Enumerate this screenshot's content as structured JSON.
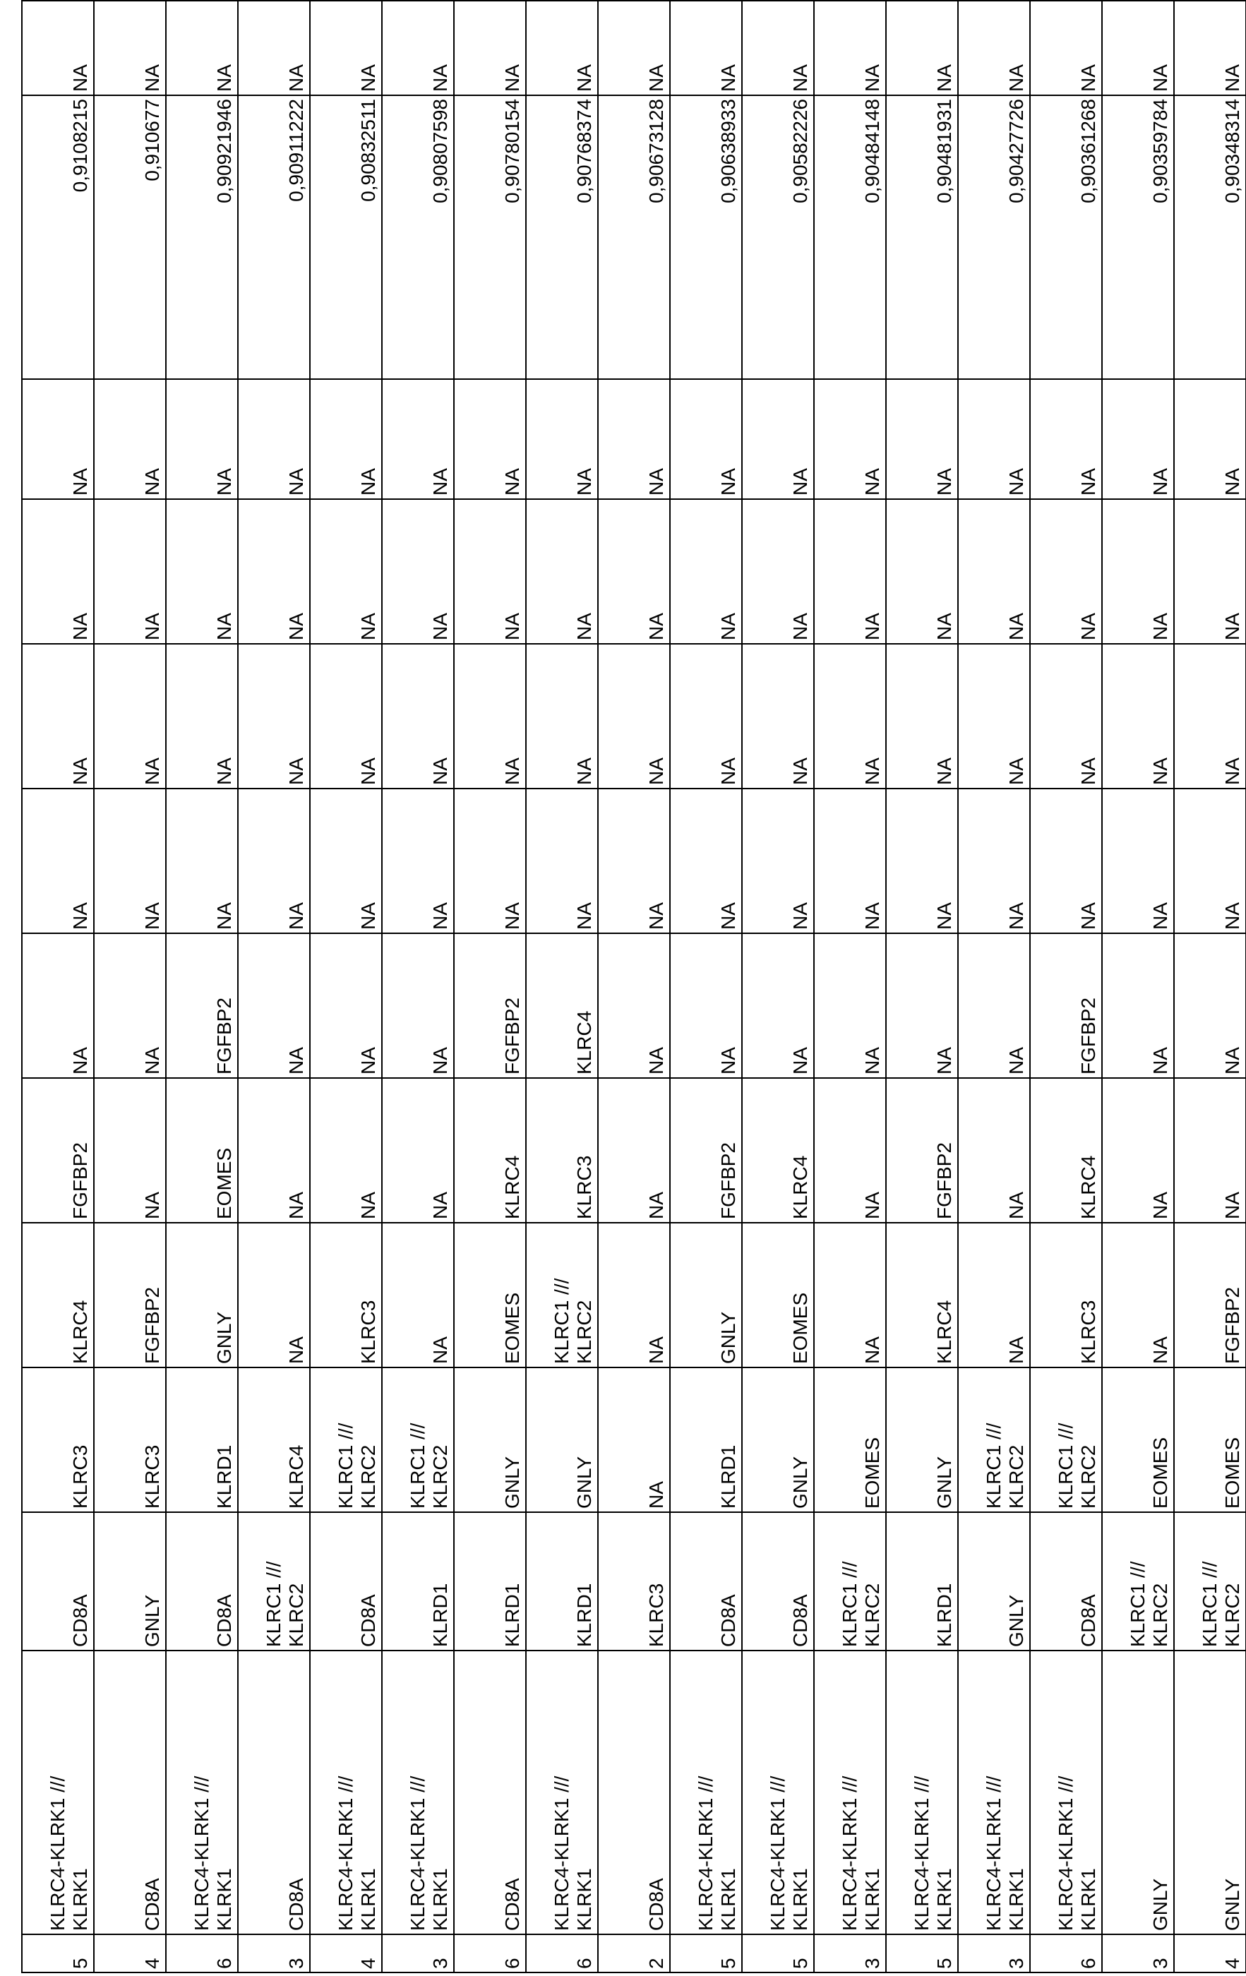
{
  "table": {
    "rows": [
      [
        "5",
        "KLRC4-KLRK1 /// KLRK1",
        "CD8A",
        "KLRC3",
        "KLRC4",
        "FGFBP2",
        "NA",
        "NA",
        "NA",
        "NA",
        "NA",
        "0,9108215",
        "NA"
      ],
      [
        "4",
        "CD8A",
        "GNLY",
        "KLRC3",
        "FGFBP2",
        "NA",
        "NA",
        "NA",
        "NA",
        "NA",
        "NA",
        "0,910677",
        "NA"
      ],
      [
        "6",
        "KLRC4-KLRK1 /// KLRK1",
        "CD8A",
        "KLRD1",
        "GNLY",
        "EOMES",
        "FGFBP2",
        "NA",
        "NA",
        "NA",
        "NA",
        "0,90921946",
        "NA"
      ],
      [
        "3",
        "CD8A",
        "KLRC1 /// KLRC2",
        "KLRC4",
        "NA",
        "NA",
        "NA",
        "NA",
        "NA",
        "NA",
        "NA",
        "0,90911222",
        "NA"
      ],
      [
        "4",
        "KLRC4-KLRK1 /// KLRK1",
        "CD8A",
        "KLRC1 /// KLRC2",
        "KLRC3",
        "NA",
        "NA",
        "NA",
        "NA",
        "NA",
        "NA",
        "0,90832511",
        "NA"
      ],
      [
        "3",
        "KLRC4-KLRK1 /// KLRK1",
        "KLRD1",
        "KLRC1 /// KLRC2",
        "NA",
        "NA",
        "NA",
        "NA",
        "NA",
        "NA",
        "NA",
        "0,90807598",
        "NA"
      ],
      [
        "6",
        "CD8A",
        "KLRD1",
        "GNLY",
        "EOMES",
        "KLRC4",
        "FGFBP2",
        "NA",
        "NA",
        "NA",
        "NA",
        "0,90780154",
        "NA"
      ],
      [
        "6",
        "KLRC4-KLRK1 /// KLRK1",
        "KLRD1",
        "GNLY",
        "KLRC1 /// KLRC2",
        "KLRC3",
        "KLRC4",
        "NA",
        "NA",
        "NA",
        "NA",
        "0,90768374",
        "NA"
      ],
      [
        "2",
        "CD8A",
        "KLRC3",
        "NA",
        "NA",
        "NA",
        "NA",
        "NA",
        "NA",
        "NA",
        "NA",
        "0,90673128",
        "NA"
      ],
      [
        "5",
        "KLRC4-KLRK1 /// KLRK1",
        "CD8A",
        "KLRD1",
        "GNLY",
        "FGFBP2",
        "NA",
        "NA",
        "NA",
        "NA",
        "NA",
        "0,90638933",
        "NA"
      ],
      [
        "5",
        "KLRC4-KLRK1 /// KLRK1",
        "CD8A",
        "GNLY",
        "EOMES",
        "KLRC4",
        "NA",
        "NA",
        "NA",
        "NA",
        "NA",
        "0,90582226",
        "NA"
      ],
      [
        "3",
        "KLRC4-KLRK1 /// KLRK1",
        "KLRC1 /// KLRC2",
        "EOMES",
        "NA",
        "NA",
        "NA",
        "NA",
        "NA",
        "NA",
        "NA",
        "0,90484148",
        "NA"
      ],
      [
        "5",
        "KLRC4-KLRK1 /// KLRK1",
        "KLRD1",
        "GNLY",
        "KLRC4",
        "FGFBP2",
        "NA",
        "NA",
        "NA",
        "NA",
        "NA",
        "0,90481931",
        "NA"
      ],
      [
        "3",
        "KLRC4-KLRK1 /// KLRK1",
        "GNLY",
        "KLRC1 /// KLRC2",
        "NA",
        "NA",
        "NA",
        "NA",
        "NA",
        "NA",
        "NA",
        "0,90427726",
        "NA"
      ],
      [
        "6",
        "KLRC4-KLRK1 /// KLRK1",
        "CD8A",
        "KLRC1 /// KLRC2",
        "KLRC3",
        "KLRC4",
        "FGFBP2",
        "NA",
        "NA",
        "NA",
        "NA",
        "0,90361268",
        "NA"
      ],
      [
        "3",
        "GNLY",
        "KLRC1 /// KLRC2",
        "EOMES",
        "NA",
        "NA",
        "NA",
        "NA",
        "NA",
        "NA",
        "NA",
        "0,90359784",
        "NA"
      ],
      [
        "4",
        "GNLY",
        "KLRC1 /// KLRC2",
        "EOMES",
        "FGFBP2",
        "NA",
        "NA",
        "NA",
        "NA",
        "NA",
        "NA",
        "0,90348314",
        "NA"
      ]
    ]
  }
}
